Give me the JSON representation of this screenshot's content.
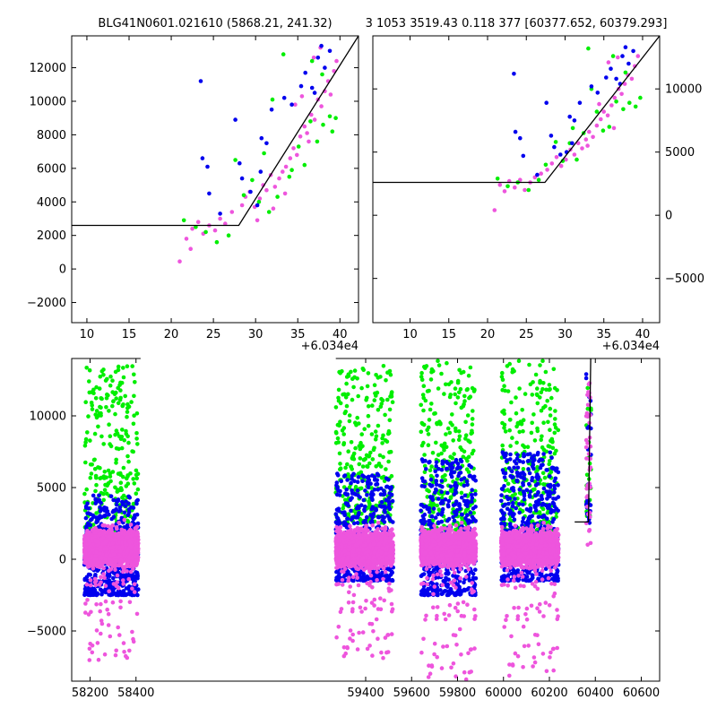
{
  "colors": {
    "blue": "#0000ee",
    "green": "#00ee00",
    "violet": "#ee55dd",
    "model_line": "#000000"
  },
  "header": {
    "left_title": "BLG41N0601.021610 (5868.21, 241.32)",
    "right_title": "3 1053 3519.43 0.118 377 [60377.652, 60379.293]"
  },
  "chart_data": [
    {
      "type": "scatter",
      "panel": "top-left zoom",
      "title": "BLG41N0601.021610 (5868.21, 241.32)",
      "x_offset_label": "+6.034e4",
      "xlim": [
        8.2,
        42.2
      ],
      "ylim": [
        -3200,
        13900
      ],
      "xticks": [
        10,
        15,
        20,
        25,
        30,
        35,
        40
      ],
      "yticks": [
        -2000,
        0,
        2000,
        4000,
        6000,
        8000,
        10000,
        12000
      ],
      "ytick_side": "left",
      "model_line": {
        "x": [
          8.2,
          28.0,
          42.2
        ],
        "y": [
          2600,
          2600,
          13900
        ]
      },
      "series": [
        {
          "color": "violet",
          "points": [
            [
              21.0,
              450
            ],
            [
              21.8,
              1800
            ],
            [
              22.3,
              1200
            ],
            [
              22.5,
              2400
            ],
            [
              23.2,
              2800
            ],
            [
              23.8,
              2100
            ],
            [
              24.5,
              2600
            ],
            [
              25.2,
              2300
            ],
            [
              25.8,
              3000
            ],
            [
              26.4,
              2700
            ],
            [
              27.2,
              3400
            ],
            [
              28.4,
              3800
            ],
            [
              28.8,
              4300
            ],
            [
              29.3,
              4600
            ],
            [
              29.9,
              3700
            ],
            [
              30.5,
              4200
            ],
            [
              30.9,
              5000
            ],
            [
              31.3,
              4700
            ],
            [
              31.8,
              5600
            ],
            [
              32.3,
              4900
            ],
            [
              32.8,
              5400
            ],
            [
              33.2,
              5800
            ],
            [
              33.6,
              6100
            ],
            [
              34.1,
              6600
            ],
            [
              34.5,
              7200
            ],
            [
              34.9,
              6800
            ],
            [
              35.3,
              7900
            ],
            [
              35.8,
              8500
            ],
            [
              36.1,
              8100
            ],
            [
              36.6,
              9200
            ],
            [
              37.0,
              8900
            ],
            [
              37.4,
              10100
            ],
            [
              37.8,
              9700
            ],
            [
              38.2,
              10600
            ],
            [
              38.6,
              11200
            ],
            [
              38.9,
              10400
            ],
            [
              39.3,
              11800
            ],
            [
              39.6,
              12400
            ],
            [
              36.9,
              12600
            ],
            [
              37.7,
              13200
            ],
            [
              33.5,
              4500
            ],
            [
              32.1,
              3600
            ],
            [
              34.7,
              9800
            ],
            [
              35.5,
              10300
            ],
            [
              36.3,
              7600
            ],
            [
              30.2,
              2900
            ]
          ]
        },
        {
          "color": "green",
          "points": [
            [
              21.5,
              2900
            ],
            [
              22.9,
              2500
            ],
            [
              24.1,
              2200
            ],
            [
              25.4,
              1600
            ],
            [
              26.8,
              2000
            ],
            [
              27.6,
              6500
            ],
            [
              28.6,
              4400
            ],
            [
              29.6,
              5300
            ],
            [
              30.4,
              4000
            ],
            [
              31.6,
              3400
            ],
            [
              32.6,
              4300
            ],
            [
              33.3,
              12800
            ],
            [
              34.3,
              5900
            ],
            [
              35.1,
              7300
            ],
            [
              35.8,
              6200
            ],
            [
              36.5,
              8800
            ],
            [
              37.3,
              7600
            ],
            [
              38.0,
              8600
            ],
            [
              38.8,
              9100
            ],
            [
              39.5,
              9000
            ],
            [
              32.0,
              10100
            ],
            [
              31.0,
              6900
            ],
            [
              36.7,
              12400
            ],
            [
              37.9,
              11600
            ],
            [
              39.1,
              8200
            ],
            [
              34.0,
              5500
            ]
          ]
        },
        {
          "color": "blue",
          "points": [
            [
              23.5,
              11200
            ],
            [
              23.7,
              6600
            ],
            [
              24.3,
              6100
            ],
            [
              24.5,
              4500
            ],
            [
              25.8,
              3300
            ],
            [
              27.6,
              8900
            ],
            [
              28.1,
              6300
            ],
            [
              28.4,
              5400
            ],
            [
              29.4,
              4600
            ],
            [
              30.2,
              3800
            ],
            [
              30.7,
              7800
            ],
            [
              31.3,
              7500
            ],
            [
              31.9,
              9500
            ],
            [
              33.4,
              10200
            ],
            [
              34.3,
              9800
            ],
            [
              35.4,
              10900
            ],
            [
              35.9,
              11700
            ],
            [
              36.7,
              10800
            ],
            [
              37.4,
              12600
            ],
            [
              37.8,
              13300
            ],
            [
              38.2,
              12000
            ],
            [
              38.8,
              13000
            ],
            [
              37.0,
              10500
            ],
            [
              30.6,
              5800
            ]
          ]
        }
      ]
    },
    {
      "type": "scatter",
      "panel": "top-right zoom",
      "title": "3 1053 3519.43 0.118 377 [60377.652, 60379.293]",
      "x_offset_label": "+6.034e4",
      "xlim": [
        5.2,
        42.2
      ],
      "ylim": [
        -8500,
        14200
      ],
      "xticks": [
        10,
        15,
        20,
        25,
        30,
        35,
        40
      ],
      "yticks": [
        -5000,
        0,
        5000,
        10000
      ],
      "ytick_side": "right",
      "model_line": {
        "x": [
          5.2,
          27.4,
          42.2
        ],
        "y": [
          2600,
          2600,
          14200
        ]
      },
      "series": [
        {
          "color": "violet",
          "points": [
            [
              20.9,
              400
            ],
            [
              21.6,
              2400
            ],
            [
              22.2,
              1900
            ],
            [
              22.8,
              2700
            ],
            [
              23.5,
              2200
            ],
            [
              24.2,
              2800
            ],
            [
              24.8,
              2000
            ],
            [
              25.5,
              2600
            ],
            [
              26.1,
              3000
            ],
            [
              26.9,
              3300
            ],
            [
              27.7,
              3600
            ],
            [
              28.3,
              4100
            ],
            [
              28.9,
              4600
            ],
            [
              29.5,
              3900
            ],
            [
              30.1,
              4400
            ],
            [
              30.7,
              5200
            ],
            [
              31.2,
              4800
            ],
            [
              31.7,
              5700
            ],
            [
              32.2,
              5300
            ],
            [
              32.7,
              6000
            ],
            [
              33.1,
              6600
            ],
            [
              33.6,
              6200
            ],
            [
              34.1,
              7100
            ],
            [
              34.6,
              7600
            ],
            [
              35.0,
              8200
            ],
            [
              35.5,
              7900
            ],
            [
              36.0,
              8700
            ],
            [
              36.4,
              9300
            ],
            [
              36.9,
              10000
            ],
            [
              37.3,
              9600
            ],
            [
              37.7,
              10400
            ],
            [
              38.1,
              11100
            ],
            [
              38.6,
              10800
            ],
            [
              39.0,
              11800
            ],
            [
              39.4,
              12600
            ],
            [
              35.6,
              12100
            ],
            [
              36.8,
              12500
            ],
            [
              32.9,
              5500
            ],
            [
              34.4,
              8800
            ],
            [
              36.3,
              6900
            ]
          ]
        },
        {
          "color": "green",
          "points": [
            [
              21.3,
              2900
            ],
            [
              22.6,
              2300
            ],
            [
              23.9,
              2600
            ],
            [
              25.3,
              2000
            ],
            [
              26.6,
              2800
            ],
            [
              27.5,
              4000
            ],
            [
              28.8,
              5800
            ],
            [
              29.7,
              4300
            ],
            [
              30.6,
              5700
            ],
            [
              31.5,
              4400
            ],
            [
              32.4,
              6500
            ],
            [
              33.4,
              10000
            ],
            [
              34.1,
              8200
            ],
            [
              34.9,
              6700
            ],
            [
              35.7,
              7000
            ],
            [
              36.6,
              9000
            ],
            [
              37.5,
              8400
            ],
            [
              38.3,
              8900
            ],
            [
              39.1,
              8600
            ],
            [
              39.7,
              9300
            ],
            [
              33.0,
              13200
            ],
            [
              31.0,
              6900
            ],
            [
              36.2,
              12600
            ],
            [
              37.8,
              11300
            ]
          ]
        },
        {
          "color": "blue",
          "points": [
            [
              23.4,
              11200
            ],
            [
              23.6,
              6600
            ],
            [
              24.2,
              6100
            ],
            [
              24.6,
              4700
            ],
            [
              26.4,
              3200
            ],
            [
              27.6,
              8900
            ],
            [
              28.2,
              6300
            ],
            [
              28.6,
              5400
            ],
            [
              29.4,
              4800
            ],
            [
              30.2,
              5000
            ],
            [
              30.6,
              7800
            ],
            [
              31.2,
              7500
            ],
            [
              31.9,
              8900
            ],
            [
              33.4,
              10200
            ],
            [
              34.2,
              9700
            ],
            [
              35.3,
              10900
            ],
            [
              35.9,
              11600
            ],
            [
              36.6,
              10800
            ],
            [
              37.4,
              12600
            ],
            [
              37.8,
              13300
            ],
            [
              38.2,
              12000
            ],
            [
              38.8,
              13000
            ],
            [
              37.1,
              10400
            ],
            [
              30.9,
              5700
            ]
          ]
        }
      ]
    },
    {
      "type": "scatter",
      "panel": "bottom full light curve",
      "xlim": [
        58120,
        60680
      ],
      "ylim": [
        -8500,
        14000
      ],
      "xticks": [
        58200,
        58400,
        59400,
        59600,
        59800,
        60000,
        60200,
        60400,
        60600
      ],
      "yticks": [
        -5000,
        0,
        5000,
        10000
      ],
      "ytick_side": "left",
      "axis_break_gap": [
        58420,
        59270
      ],
      "model_line": {
        "x": [
          60310,
          60370,
          60372,
          60380
        ],
        "y": [
          2600,
          2600,
          5000,
          14000
        ]
      },
      "seasons": [
        {
          "xmin": 58175,
          "xmax": 58410,
          "violet_band": [
            -1200,
            2800
          ],
          "blue_band": [
            -2500,
            4500
          ],
          "green_band": [
            1500,
            13500
          ],
          "scatter_low": -7300
        },
        {
          "xmin": 59270,
          "xmax": 59520,
          "violet_band": [
            -1200,
            2600
          ],
          "blue_band": [
            -1500,
            6000
          ],
          "green_band": [
            2500,
            13500
          ],
          "scatter_low": -6900
        },
        {
          "xmin": 59640,
          "xmax": 59880,
          "violet_band": [
            -1000,
            2600
          ],
          "blue_band": [
            -2500,
            7000
          ],
          "green_band": [
            2000,
            13900
          ],
          "scatter_low": -8400
        },
        {
          "xmin": 59990,
          "xmax": 60240,
          "violet_band": [
            -1100,
            2600
          ],
          "blue_band": [
            -1500,
            7500
          ],
          "green_band": [
            2000,
            13900
          ],
          "scatter_low": -8300
        },
        {
          "xmin": 60360,
          "xmax": 60382,
          "violet_band": [
            1000,
            13500
          ],
          "blue_band": [
            2500,
            13900
          ],
          "green_band": [
            3000,
            12000
          ],
          "scatter_low": 1000
        }
      ]
    }
  ]
}
